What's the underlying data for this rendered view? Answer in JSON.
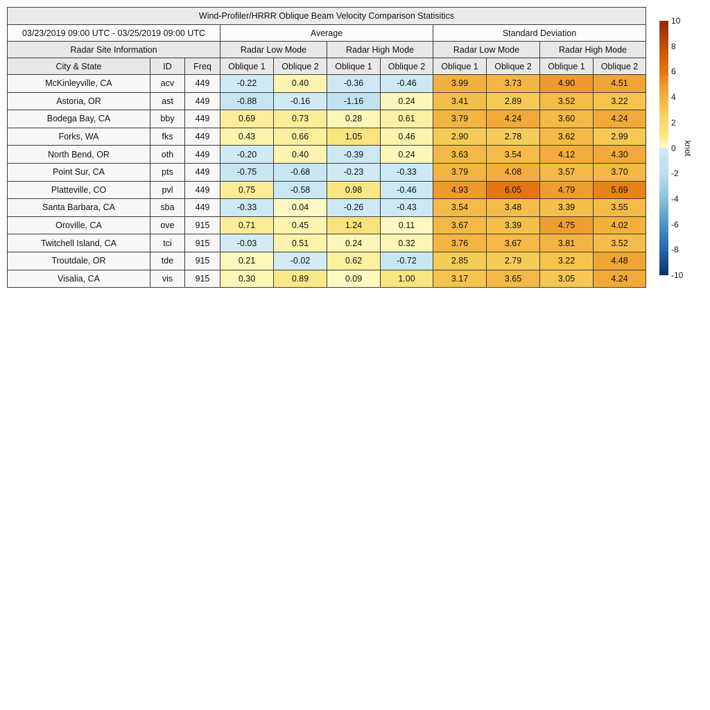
{
  "chart_data": {
    "type": "table",
    "title": "Wind-Profiler/HRRR Oblique Beam Velocity Comparison Statisitics",
    "date_range": "03/23/2019 09:00 UTC - 03/25/2019 09:00 UTC",
    "site_info_header": "Radar Site Information",
    "group_headers": {
      "average": "Average",
      "std": "Standard Deviation"
    },
    "mode_headers": [
      "Radar Low Mode",
      "Radar High Mode",
      "Radar Low Mode",
      "Radar High Mode"
    ],
    "column_headers": {
      "city": "City & State",
      "id": "ID",
      "freq": "Freq",
      "oblique1": "Oblique 1",
      "oblique2": "Oblique 2"
    },
    "unit": "knot",
    "rows": [
      {
        "city": "McKinleyville, CA",
        "id": "acv",
        "freq": "449",
        "values": [
          "-0.22",
          "0.40",
          "-0.36",
          "-0.46",
          "3.99",
          "3.73",
          "4.90",
          "4.51"
        ]
      },
      {
        "city": "Astoria, OR",
        "id": "ast",
        "freq": "449",
        "values": [
          "-0.88",
          "-0.16",
          "-1.16",
          "0.24",
          "3.41",
          "2.89",
          "3.52",
          "3.22"
        ]
      },
      {
        "city": "Bodega Bay, CA",
        "id": "bby",
        "freq": "449",
        "values": [
          "0.69",
          "0.73",
          "0.28",
          "0.61",
          "3.79",
          "4.24",
          "3.60",
          "4.24"
        ]
      },
      {
        "city": "Forks, WA",
        "id": "fks",
        "freq": "449",
        "values": [
          "0.43",
          "0.66",
          "1.05",
          "0.46",
          "2.90",
          "2.78",
          "3.62",
          "2.99"
        ]
      },
      {
        "city": "North Bend, OR",
        "id": "oth",
        "freq": "449",
        "values": [
          "-0.20",
          "0.40",
          "-0.39",
          "0.24",
          "3.63",
          "3.54",
          "4.12",
          "4.30"
        ]
      },
      {
        "city": "Point Sur, CA",
        "id": "pts",
        "freq": "449",
        "values": [
          "-0.75",
          "-0.68",
          "-0.23",
          "-0.33",
          "3.79",
          "4.08",
          "3.57",
          "3.70"
        ]
      },
      {
        "city": "Platteville, CO",
        "id": "pvl",
        "freq": "449",
        "values": [
          "0.75",
          "-0.58",
          "0.98",
          "-0.46",
          "4.93",
          "6.05",
          "4.79",
          "5.69"
        ]
      },
      {
        "city": "Santa Barbara, CA",
        "id": "sba",
        "freq": "449",
        "values": [
          "-0.33",
          "0.04",
          "-0.26",
          "-0.43",
          "3.54",
          "3.48",
          "3.39",
          "3.55"
        ]
      },
      {
        "city": "Oroville, CA",
        "id": "ove",
        "freq": "915",
        "values": [
          "0.71",
          "0.45",
          "1.24",
          "0.11",
          "3.67",
          "3.39",
          "4.75",
          "4.02"
        ]
      },
      {
        "city": "Twitchell Island, CA",
        "id": "tci",
        "freq": "915",
        "values": [
          "-0.03",
          "0.51",
          "0.24",
          "0.32",
          "3.76",
          "3.67",
          "3.81",
          "3.52"
        ]
      },
      {
        "city": "Troutdale, OR",
        "id": "tde",
        "freq": "915",
        "values": [
          "0.21",
          "-0.02",
          "0.62",
          "-0.72",
          "2.85",
          "2.79",
          "3.22",
          "4.48"
        ]
      },
      {
        "city": "Visalia, CA",
        "id": "vis",
        "freq": "915",
        "values": [
          "0.30",
          "0.89",
          "0.09",
          "1.00",
          "3.17",
          "3.65",
          "3.05",
          "4.24"
        ]
      }
    ],
    "colorbar": {
      "label": "knot",
      "min": -10,
      "max": 10,
      "ticks": [
        "10",
        "8",
        "6",
        "4",
        "2",
        "0",
        "-2",
        "-4",
        "-6",
        "-8",
        "-10"
      ],
      "positive_stops": [
        [
          0,
          "#fefac6"
        ],
        [
          0.5,
          "#fcf2ab"
        ],
        [
          1,
          "#f9e57e"
        ],
        [
          2,
          "#f8d970"
        ],
        [
          3,
          "#f6c853"
        ],
        [
          4,
          "#f2b03e"
        ],
        [
          5,
          "#ee982c"
        ],
        [
          6,
          "#e6760f"
        ],
        [
          8,
          "#c24e07"
        ],
        [
          10,
          "#8f2a10"
        ]
      ],
      "negative_stops": [
        [
          -10,
          "#0e3264"
        ],
        [
          -8,
          "#2565ab"
        ],
        [
          -6,
          "#4b94c4"
        ],
        [
          -4,
          "#8ac2dc"
        ],
        [
          -2,
          "#b9dfed"
        ],
        [
          -1,
          "#c3e4f0"
        ],
        [
          0,
          "#d2ebf5"
        ]
      ]
    }
  }
}
